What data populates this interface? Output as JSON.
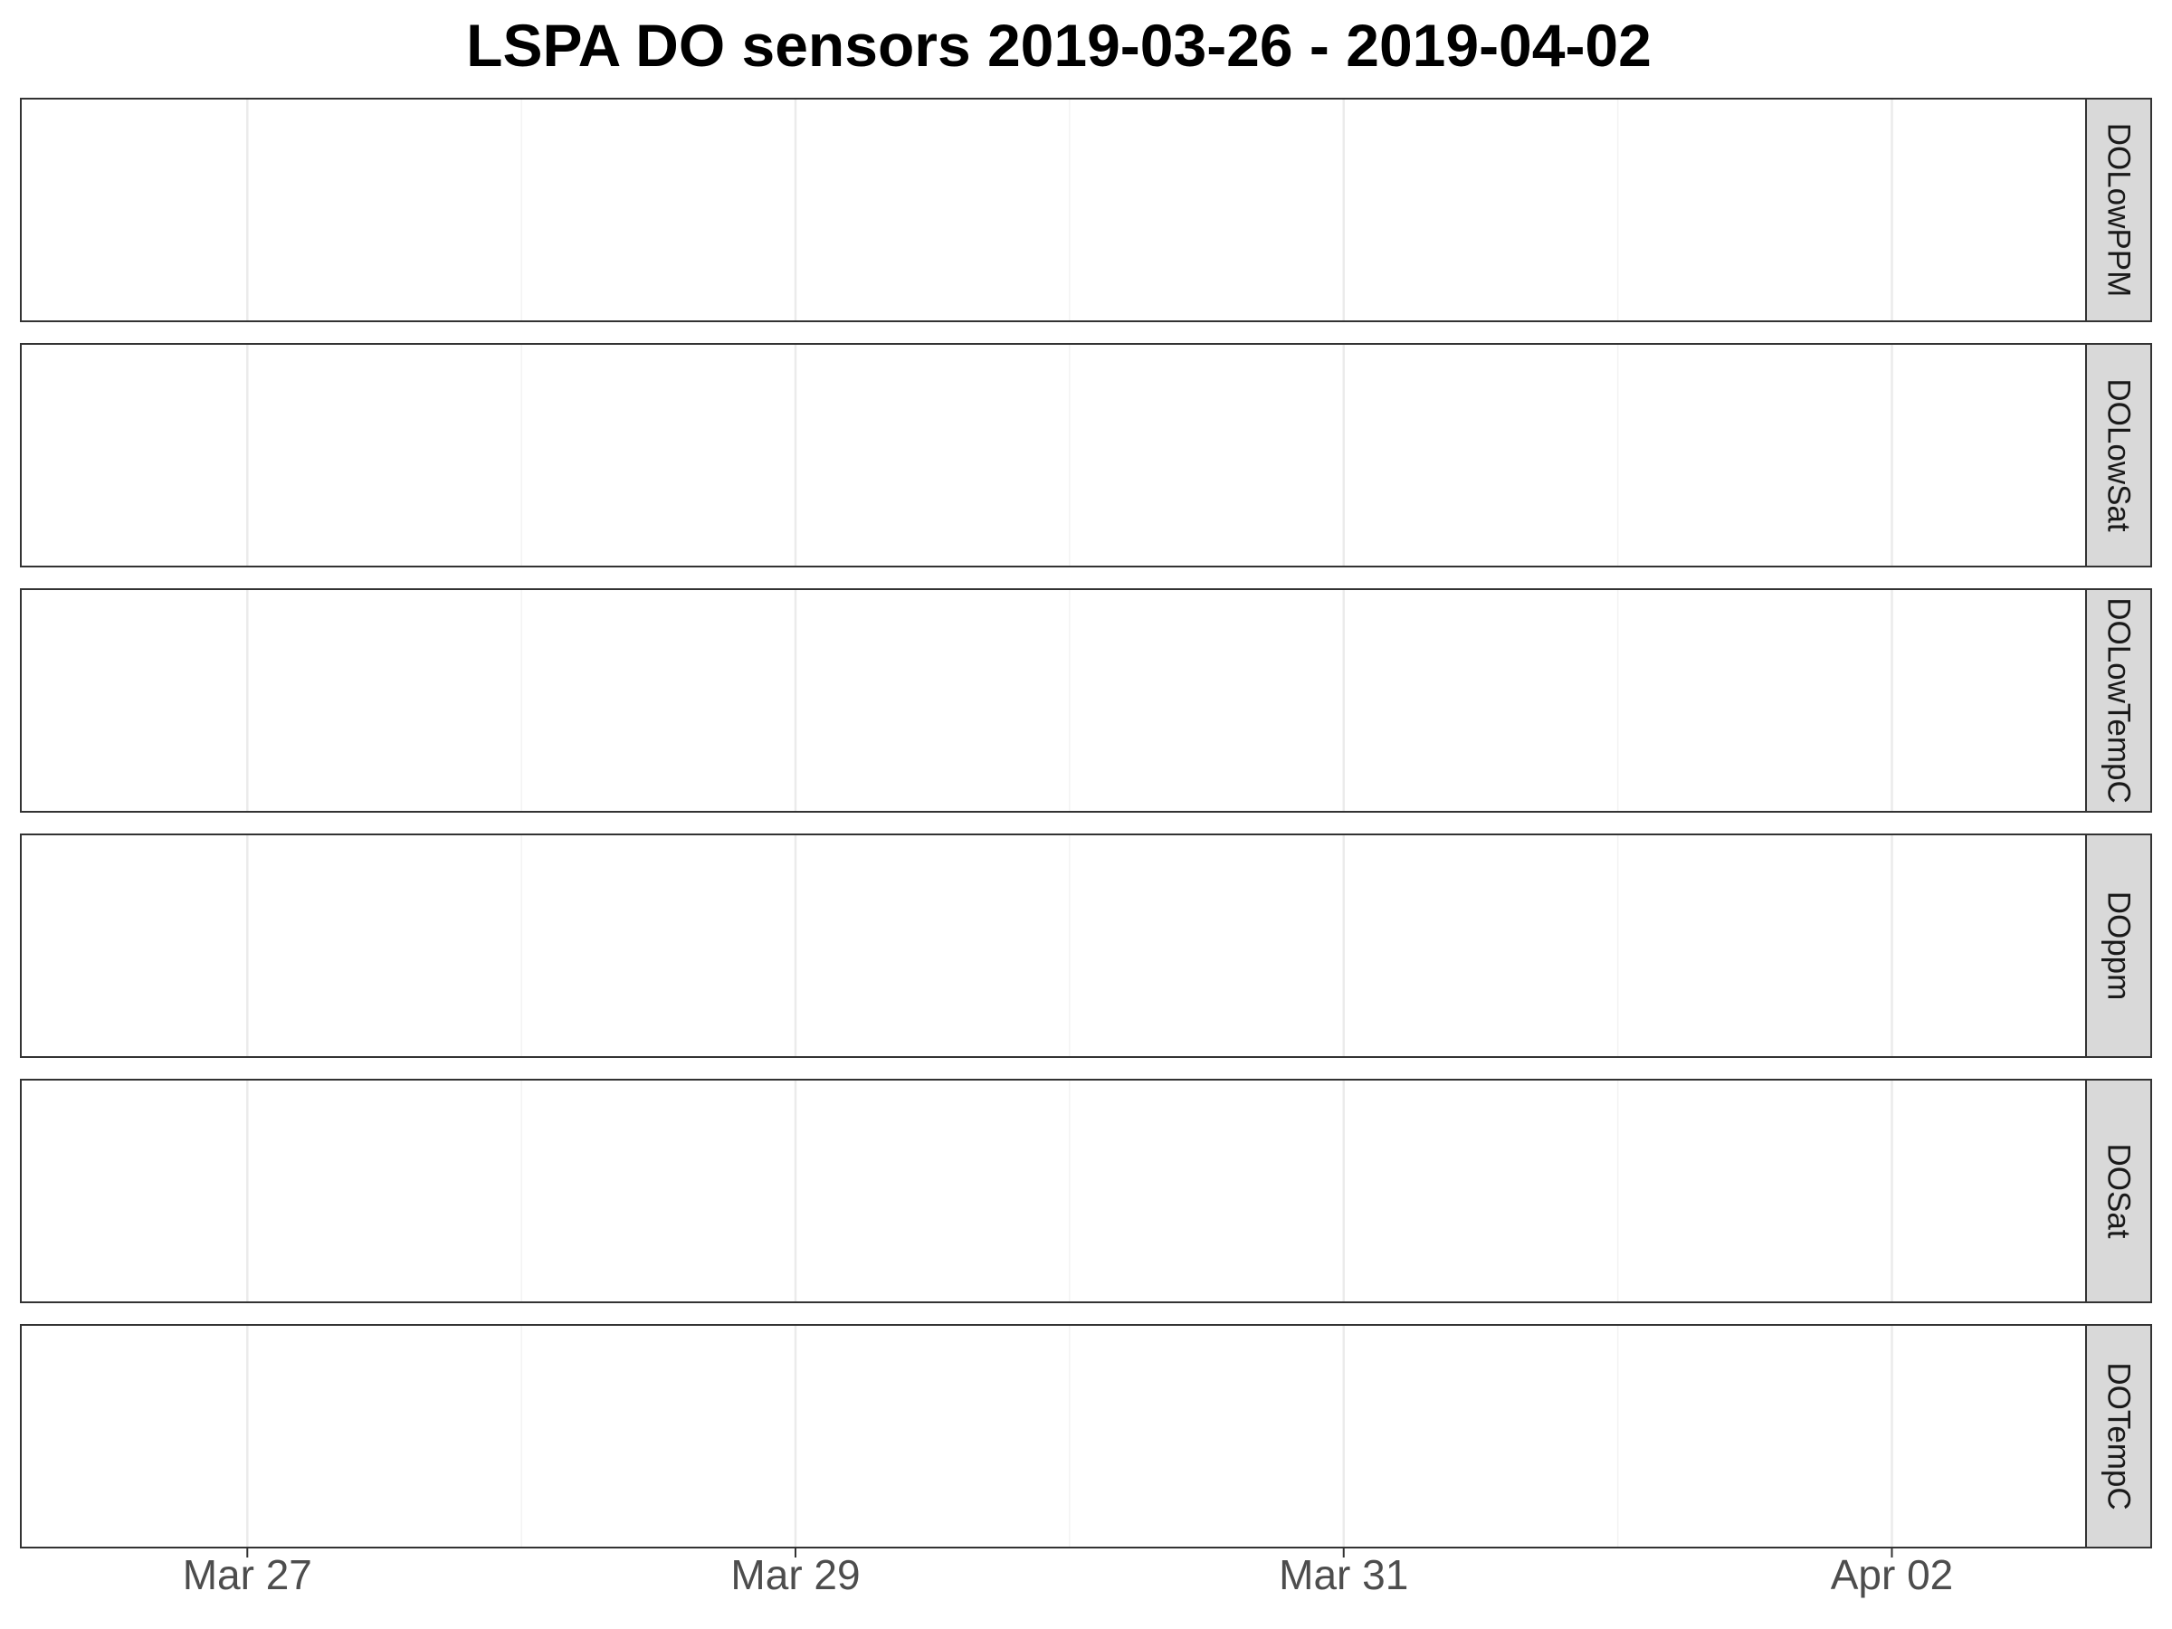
{
  "chart_data": {
    "type": "line",
    "title": "LSPA DO sensors 2019-03-26 - 2019-04-02",
    "xlabel": "",
    "ylabel": "",
    "facet_layout": "vertical strips, labels on right",
    "x_range": [
      "2019-03-26T04:10",
      "2019-04-02T17:00"
    ],
    "x_major_ticks": [
      {
        "date": "2019-03-27",
        "label": "Mar 27"
      },
      {
        "date": "2019-03-29",
        "label": "Mar 29"
      },
      {
        "date": "2019-03-31",
        "label": "Mar 31"
      },
      {
        "date": "2019-04-02",
        "label": "Apr 02"
      }
    ],
    "x_minor_ticks": [
      "2019-03-26",
      "2019-03-28",
      "2019-03-30",
      "2019-04-01"
    ],
    "grid": true,
    "legend": "none",
    "facets": [
      {
        "label": "DOLowPPM",
        "values": []
      },
      {
        "label": "DOLowSat",
        "values": []
      },
      {
        "label": "DOLowTempC",
        "values": []
      },
      {
        "label": "DOppm",
        "values": []
      },
      {
        "label": "DOSat",
        "values": []
      },
      {
        "label": "DOTempC",
        "values": []
      }
    ],
    "colors": {
      "panel_border": "#333333",
      "strip_fill": "#d9d9d9",
      "grid_major": "#ebebeb",
      "grid_minor": "#f3f3f3",
      "tick_text": "#4d4d4d"
    }
  }
}
